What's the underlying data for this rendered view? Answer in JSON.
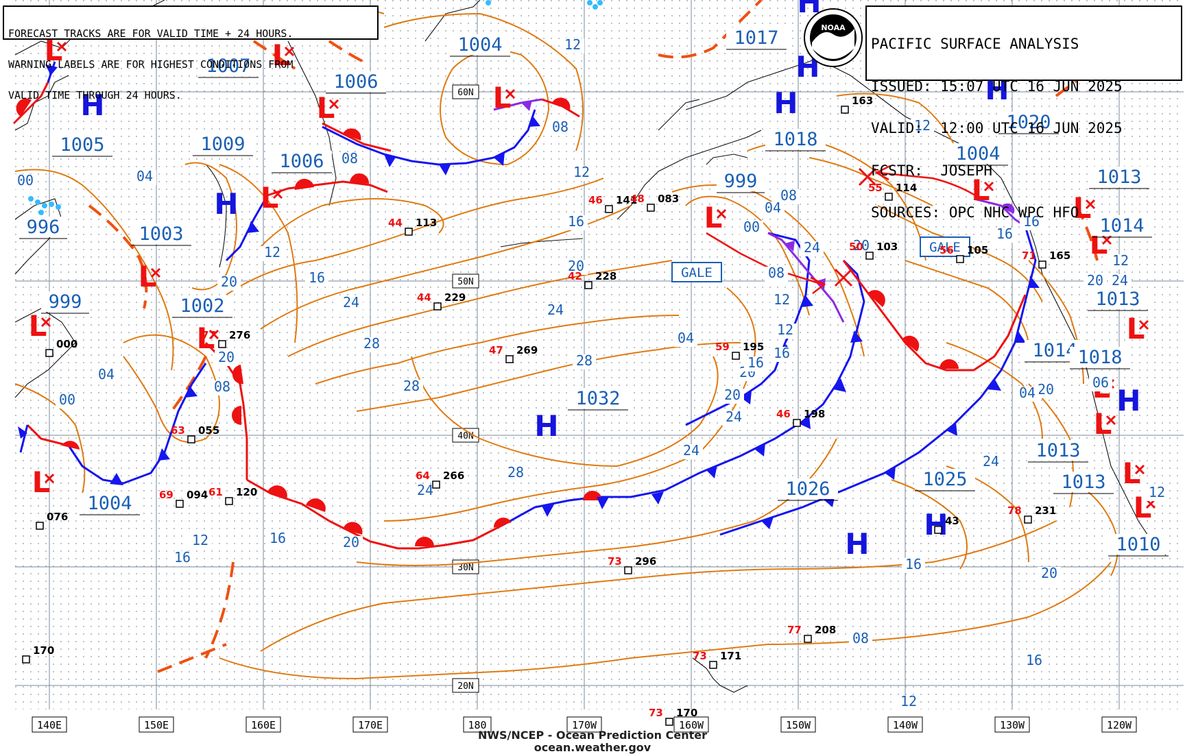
{
  "header": {
    "warning_lines": [
      "FORECAST TRACKS ARE FOR VALID TIME + 24 HOURS.",
      "WARNING LABELS ARE FOR HIGHEST CONDITIONS FROM",
      "VALID TIME THROUGH 24 HOURS."
    ],
    "analysis_lines": [
      "PACIFIC SURFACE ANALYSIS",
      "ISSUED: 15:07 UTC 16 JUN 2025",
      "VALID:  12:00 UTC 16 JUN 2025",
      "FCSTR:  JOSEPH",
      "SOURCES: OPC NHC WPC HFO"
    ],
    "logo_text": "NOAA"
  },
  "footer": {
    "line1": "NWS/NCEP - Ocean Prediction Center",
    "line2": "ocean.weather.gov"
  },
  "colors": {
    "isobar": "#e07a10",
    "label": "#1a5fb4",
    "low": "#ee1111",
    "high": "#1515dd",
    "cold_front": "#1515ee",
    "warm_front": "#ee1111",
    "occluded": "#8a2be2",
    "grid": "#7a8a9a",
    "coast": "#111111"
  },
  "longitude_labels": [
    "140E",
    "150E",
    "160E",
    "170E",
    "180",
    "170W",
    "160W",
    "150W",
    "140W",
    "130W",
    "120W"
  ],
  "latitude_labels": [
    "60N",
    "50N",
    "40N",
    "30N",
    "20N"
  ],
  "pressure_labels": [
    {
      "id": "p1004-a",
      "text": "1004"
    },
    {
      "id": "p1007",
      "text": "1007"
    },
    {
      "id": "p1006-a",
      "text": "1006"
    },
    {
      "id": "p1005",
      "text": "1005"
    },
    {
      "id": "p1009",
      "text": "1009"
    },
    {
      "id": "p1006-b",
      "text": "1006"
    },
    {
      "id": "p996",
      "text": "996"
    },
    {
      "id": "p1003",
      "text": "1003"
    },
    {
      "id": "p999-a",
      "text": "999"
    },
    {
      "id": "p1002",
      "text": "1002"
    },
    {
      "id": "p1004-b",
      "text": "1004"
    },
    {
      "id": "p1032",
      "text": "1032"
    },
    {
      "id": "p1017",
      "text": "1017"
    },
    {
      "id": "p1018",
      "text": "1018"
    },
    {
      "id": "p999-b",
      "text": "999"
    },
    {
      "id": "p1004-c",
      "text": "1004"
    },
    {
      "id": "p1020",
      "text": "1020"
    },
    {
      "id": "p1013-a",
      "text": "1013"
    },
    {
      "id": "p1014-a",
      "text": "1014"
    },
    {
      "id": "p1013-b",
      "text": "1013"
    },
    {
      "id": "p1014-b",
      "text": "1014"
    },
    {
      "id": "p1018-b",
      "text": "1018"
    },
    {
      "id": "p1013-c",
      "text": "1013"
    },
    {
      "id": "p1013-d",
      "text": "1013"
    },
    {
      "id": "p1026",
      "text": "1026"
    },
    {
      "id": "p1025",
      "text": "1025"
    },
    {
      "id": "p1010",
      "text": "1010"
    }
  ],
  "isobar_labels": [
    "12",
    "08",
    "04",
    "00",
    "08",
    "12",
    "16",
    "20",
    "24",
    "28",
    "28",
    "28",
    "24",
    "20",
    "16",
    "12",
    "12",
    "16",
    "20",
    "24",
    "20",
    "24",
    "28",
    "24",
    "20",
    "16",
    "12",
    "08",
    "04",
    "00",
    "04",
    "08",
    "12",
    "16",
    "20",
    "24",
    "20",
    "16",
    "12",
    "08",
    "06",
    "04",
    "12",
    "16",
    "20",
    "24",
    "20",
    "16",
    "16",
    "12",
    "00",
    "04",
    "08",
    "12",
    "16",
    "20",
    "24"
  ],
  "gale_labels": [
    "GALE",
    "GALE"
  ],
  "station_values": [
    "113",
    "229",
    "269",
    "266",
    "296",
    "228",
    "141",
    "083",
    "195",
    "198",
    "103",
    "114",
    "105",
    "165",
    "231",
    "208",
    "171",
    "170",
    "276",
    "055",
    "094",
    "120",
    "076",
    "000",
    "170",
    "163",
    "43"
  ],
  "station_temps": [
    "44",
    "44",
    "47",
    "64",
    "73",
    "42",
    "46",
    "48",
    "59",
    "46",
    "50",
    "55",
    "56",
    "71",
    "78",
    "77",
    "73",
    "73",
    "77",
    "63",
    "69",
    "61"
  ]
}
